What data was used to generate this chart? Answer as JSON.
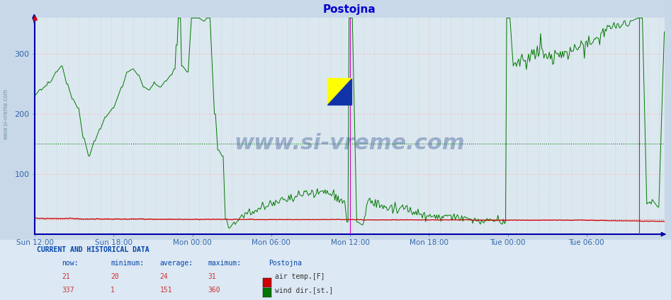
{
  "title": "Postojna",
  "title_color": "#0000cc",
  "plot_bg_color": "#dce8f0",
  "fig_bg_color": "#c8d8e8",
  "legend_bg_color": "#dce8f4",
  "x_labels": [
    "Sun 12:00",
    "Sun 18:00",
    "Mon 00:00",
    "Mon 06:00",
    "Mon 12:00",
    "Mon 18:00",
    "Tue 00:00",
    "Tue 06:00"
  ],
  "x_ticks_pos": [
    0,
    72,
    144,
    216,
    288,
    360,
    432,
    504
  ],
  "total_points": 576,
  "ylim": [
    0,
    360
  ],
  "yticks": [
    100,
    200,
    300
  ],
  "air_temp_color": "#cc0000",
  "wind_dir_color": "#007700",
  "avg_wind_color": "#008800",
  "avg_temp_color": "#dd6666",
  "grid_h_color": "#ffaaaa",
  "grid_v_color": "#ffaaaa",
  "grid_dotted_color": "#cccccc",
  "blue_border_color": "#0000aa",
  "magenta_vlines_color": "#cc00cc",
  "magenta_vlines_x": [
    288,
    552
  ],
  "sidebar_text": "www.si-vreme.com",
  "sidebar_color": "#7799aa",
  "watermark_text": "www.si-vreme.com",
  "air_temp_now": 21,
  "air_temp_min": 20,
  "air_temp_avg": 24,
  "air_temp_max": 31,
  "wind_dir_now": 337,
  "wind_dir_min": 1,
  "wind_dir_avg": 151,
  "wind_dir_max": 360,
  "avg_wind_y": 151,
  "avg_temp_y": 24
}
